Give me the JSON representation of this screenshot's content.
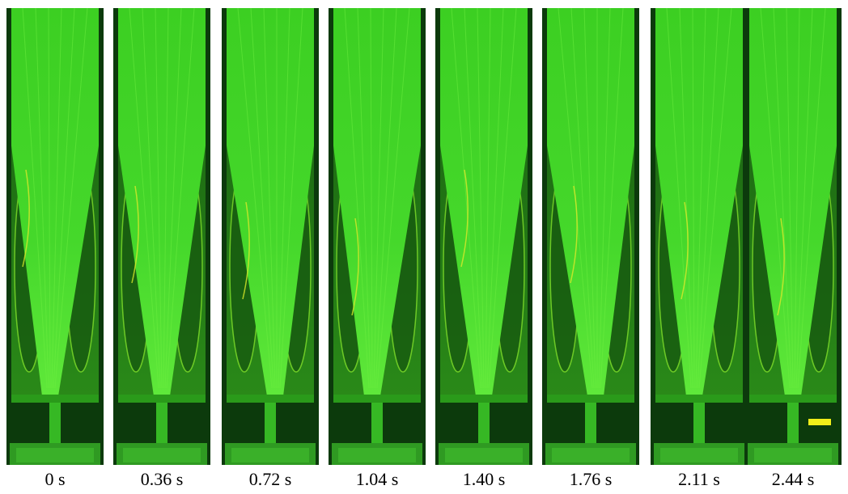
{
  "panels": [
    {
      "label": "0 s"
    },
    {
      "label": "0.36 s"
    },
    {
      "label": "0.72 s"
    },
    {
      "label": "1.04 s"
    },
    {
      "label": "1.40 s"
    },
    {
      "label": "1.76 s"
    },
    {
      "label": "2.11 s"
    },
    {
      "label": "2.44 s"
    }
  ]
}
